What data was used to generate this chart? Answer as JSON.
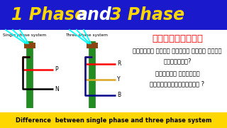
{
  "title": "1 Phase and 3 Phase",
  "title_bg": "#1A1ACC",
  "title_color_1phase": "#FFD700",
  "title_color_and": "#FFFFFF",
  "title_color_3phase": "#FFD700",
  "bottom_text": "Difference  between single phase and three phase system",
  "bottom_bg": "#FFD700",
  "bottom_text_color": "#000000",
  "left_label": "Single phase system",
  "right_label": "Three phase system",
  "kannada_line1": "ಕಂ಍ಡದಲ್ಲಿ",
  "kannada_line2": "ಸಿಂಗಲ್ ಫೇಸ್ ಮತ್ತು ತ್ರೀ ಫೇಸ್",
  "kannada_line3": "ಎಂದರೇನು?",
  "kannada_line4": "ಇವೆರಡರ ನಡುವಿನ",
  "kannada_line5": "ವ್ಯತ್ಯ್ನಸಗಳೇನು ?",
  "bg_color": "#FFFFFF"
}
